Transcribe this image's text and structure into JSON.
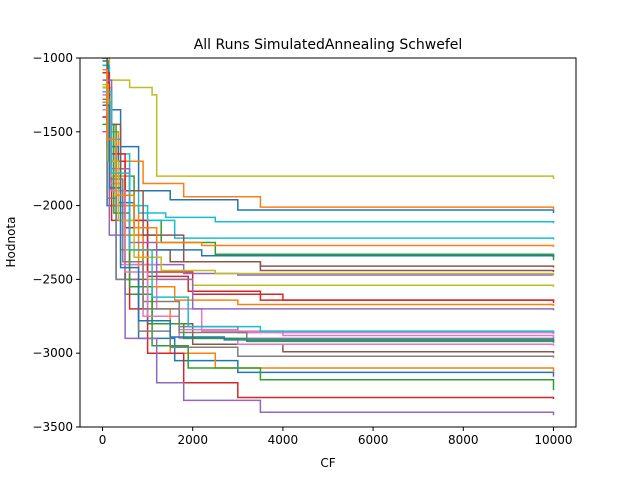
{
  "chart_data": {
    "type": "line",
    "title": "All Runs SimulatedAnnealing Schwefel",
    "xlabel": "CF",
    "ylabel": "Hodnota",
    "xlim": [
      -500,
      10500
    ],
    "ylim": [
      -3500,
      -1000
    ],
    "xticks": [
      0,
      2000,
      4000,
      6000,
      8000,
      10000
    ],
    "xtick_labels": [
      "0",
      "2000",
      "4000",
      "6000",
      "8000",
      "10000"
    ],
    "yticks": [
      -3500,
      -3000,
      -2500,
      -2000,
      -1500,
      -1000
    ],
    "ytick_labels": [
      "−3500",
      "−3000",
      "−2500",
      "−2000",
      "−1500",
      "−1000"
    ],
    "grid": false,
    "legend": "none",
    "colors": [
      "#1f77b4",
      "#ff7f0e",
      "#2ca02c",
      "#d62728",
      "#9467bd",
      "#8c564b",
      "#e377c2",
      "#7f7f7f",
      "#bcbd22",
      "#17becf"
    ],
    "series": [
      {
        "x": [
          0,
          120,
          400,
          800,
          1500,
          3000,
          10000
        ],
        "y": [
          -1050,
          -1350,
          -1600,
          -1900,
          -1960,
          -2030,
          -2050
        ]
      },
      {
        "x": [
          0,
          150,
          350,
          900,
          1800,
          3500,
          10000
        ],
        "y": [
          -1100,
          -1500,
          -1700,
          -1850,
          -1940,
          -2010,
          -2030
        ]
      },
      {
        "x": [
          0,
          100,
          300,
          700,
          1300,
          2500,
          10000
        ],
        "y": [
          -1000,
          -1450,
          -1800,
          -2100,
          -2250,
          -2330,
          -2370
        ]
      },
      {
        "x": [
          0,
          200,
          500,
          1000,
          2000,
          4000,
          10000
        ],
        "y": [
          -1200,
          -1700,
          -2100,
          -2450,
          -2600,
          -2640,
          -2650
        ]
      },
      {
        "x": [
          0,
          150,
          450,
          900,
          1800,
          3000,
          10000
        ],
        "y": [
          -1300,
          -1900,
          -2200,
          -2400,
          -2460,
          -2470,
          -2470
        ]
      },
      {
        "x": [
          0,
          100,
          300,
          600,
          1500,
          3500,
          10000
        ],
        "y": [
          -1150,
          -1600,
          -2000,
          -2300,
          -2380,
          -2410,
          -2420
        ]
      },
      {
        "x": [
          0,
          200,
          600,
          1200,
          2200,
          4000,
          10000
        ],
        "y": [
          -1250,
          -1800,
          -2400,
          -2700,
          -2850,
          -2880,
          -2900
        ]
      },
      {
        "x": [
          0,
          150,
          400,
          900,
          1700,
          3000,
          10000
        ],
        "y": [
          -1100,
          -1700,
          -2300,
          -2650,
          -2820,
          -2860,
          -2870
        ]
      },
      {
        "x": [
          0,
          150,
          600,
          1100,
          1200,
          10000
        ],
        "y": [
          -1000,
          -1150,
          -1200,
          -1250,
          -1800,
          -1820
        ]
      },
      {
        "x": [
          0,
          200,
          600,
          1000,
          1600,
          10000
        ],
        "y": [
          -1350,
          -1650,
          -2000,
          -2100,
          -2220,
          -2230
        ]
      },
      {
        "x": [
          0,
          100,
          300,
          800,
          1600,
          3000,
          10000
        ],
        "y": [
          -1400,
          -2000,
          -2500,
          -2900,
          -3050,
          -3130,
          -3160
        ]
      },
      {
        "x": [
          0,
          200,
          800,
          1500,
          2500,
          10000
        ],
        "y": [
          -1300,
          -2000,
          -2700,
          -3000,
          -3100,
          -3130
        ]
      },
      {
        "x": [
          0,
          150,
          500,
          1100,
          1900,
          3500,
          10000
        ],
        "y": [
          -1200,
          -1900,
          -2600,
          -2950,
          -3100,
          -3180,
          -3250
        ]
      },
      {
        "x": [
          0,
          200,
          600,
          1000,
          1800,
          3000,
          10000
        ],
        "y": [
          -1400,
          -2100,
          -2700,
          -3000,
          -3200,
          -3300,
          -3310
        ]
      },
      {
        "x": [
          0,
          150,
          500,
          1200,
          1800,
          3500,
          10000
        ],
        "y": [
          -1500,
          -2200,
          -2900,
          -3200,
          -3320,
          -3400,
          -3420
        ]
      },
      {
        "x": [
          0,
          200,
          500,
          1000,
          2000,
          4000,
          10000
        ],
        "y": [
          -1300,
          -1900,
          -2500,
          -2800,
          -2940,
          -2990,
          -3000
        ]
      },
      {
        "x": [
          0,
          150,
          400,
          900,
          1700,
          3000,
          10000
        ],
        "y": [
          -1250,
          -1850,
          -2400,
          -2750,
          -2900,
          -2940,
          -2950
        ]
      },
      {
        "x": [
          0,
          100,
          300,
          800,
          1500,
          3000,
          10000
        ],
        "y": [
          -1350,
          -1950,
          -2500,
          -2850,
          -2960,
          -3020,
          -3030
        ]
      },
      {
        "x": [
          0,
          200,
          500,
          1000,
          2000,
          10000
        ],
        "y": [
          -1200,
          -1800,
          -2300,
          -2500,
          -2540,
          -2550
        ]
      },
      {
        "x": [
          0,
          150,
          400,
          800,
          1400,
          2500,
          10000
        ],
        "y": [
          -1050,
          -1550,
          -1900,
          -2050,
          -2080,
          -2110,
          -2120
        ]
      },
      {
        "x": [
          0,
          120,
          350,
          700,
          1200,
          2200,
          10000
        ],
        "y": [
          -1020,
          -1600,
          -1980,
          -2200,
          -2300,
          -2340,
          -2350
        ]
      },
      {
        "x": [
          0,
          200,
          500,
          900,
          1600,
          3000,
          10000
        ],
        "y": [
          -1300,
          -1750,
          -2200,
          -2550,
          -2640,
          -2670,
          -2680
        ]
      },
      {
        "x": [
          0,
          250,
          600,
          1100,
          1800,
          3200,
          10000
        ],
        "y": [
          -1450,
          -2050,
          -2550,
          -2800,
          -2900,
          -2920,
          -2930
        ]
      },
      {
        "x": [
          0,
          150,
          500,
          1000,
          1900,
          3500,
          10000
        ],
        "y": [
          -1100,
          -1650,
          -2150,
          -2480,
          -2580,
          -2640,
          -2660
        ]
      },
      {
        "x": [
          0,
          200,
          600,
          1200,
          2000,
          10000
        ],
        "y": [
          -1150,
          -1750,
          -2250,
          -2500,
          -2700,
          -2710
        ]
      },
      {
        "x": [
          0,
          100,
          400,
          900,
          1800,
          3500,
          10000
        ],
        "y": [
          -1000,
          -1450,
          -1900,
          -2200,
          -2380,
          -2440,
          -2450
        ]
      },
      {
        "x": [
          0,
          180,
          500,
          1000,
          1700,
          3000,
          10000
        ],
        "y": [
          -1350,
          -1900,
          -2450,
          -2750,
          -2840,
          -2860,
          -2870
        ]
      },
      {
        "x": [
          0,
          150,
          450,
          900,
          1700,
          3200,
          10000
        ],
        "y": [
          -1280,
          -1820,
          -2380,
          -2700,
          -2860,
          -2900,
          -2910
        ]
      },
      {
        "x": [
          0,
          120,
          350,
          700,
          1300,
          2500,
          10000
        ],
        "y": [
          -1180,
          -1700,
          -2100,
          -2350,
          -2440,
          -2460,
          -2470
        ]
      },
      {
        "x": [
          0,
          200,
          600,
          1100,
          1900,
          3500,
          10000
        ],
        "y": [
          -1230,
          -1780,
          -2300,
          -2620,
          -2820,
          -2850,
          -2860
        ]
      },
      {
        "x": [
          0,
          150,
          400,
          800,
          1500,
          2700,
          10000
        ],
        "y": [
          -1320,
          -1880,
          -2420,
          -2780,
          -2890,
          -2910,
          -2920
        ]
      },
      {
        "x": [
          0,
          100,
          300,
          700,
          1200,
          2200,
          10000
        ],
        "y": [
          -1080,
          -1550,
          -1930,
          -2150,
          -2250,
          -2270,
          -2280
        ]
      }
    ]
  }
}
